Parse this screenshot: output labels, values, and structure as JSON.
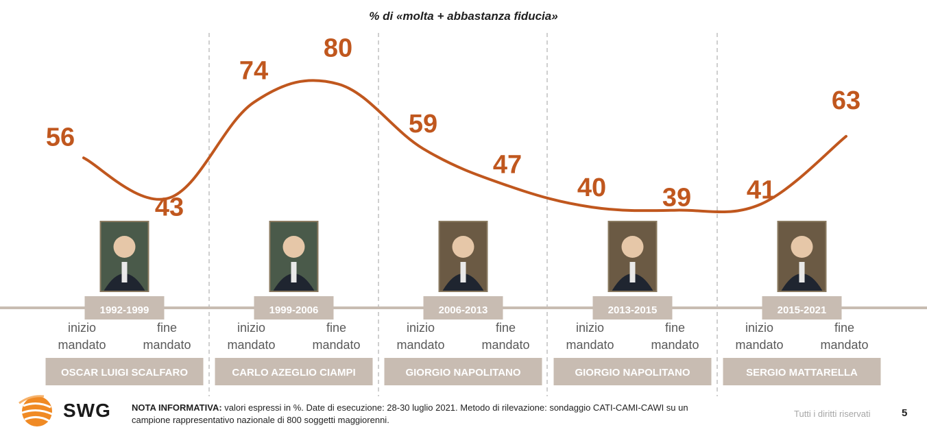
{
  "chart_data": {
    "type": "line",
    "title": "% di «molta + abbastanza fiducia»",
    "x": [
      "Scalfaro inizio",
      "Scalfaro fine",
      "Ciampi inizio",
      "Ciampi fine",
      "Napolitano I inizio",
      "Napolitano I fine",
      "Napolitano II inizio",
      "Napolitano II fine",
      "Mattarella inizio",
      "Mattarella fine"
    ],
    "series": [
      {
        "values": [
          56,
          43,
          74,
          80,
          59,
          47,
          40,
          39,
          41,
          63
        ]
      }
    ],
    "value_labels": [
      "56",
      "43",
      "74",
      "80",
      "59",
      "47",
      "40",
      "39",
      "41",
      "63"
    ],
    "line_color": "#C0571E",
    "label_color": "#C0571E",
    "mandates": [
      {
        "period": "1992-1999",
        "president": "OSCAR LUIGI SCALFARO",
        "start_label": [
          "inizio",
          "mandato"
        ],
        "end_label": [
          "fine",
          "mandato"
        ],
        "portrait": "portrait-scalfaro"
      },
      {
        "period": "1999-2006",
        "president": "CARLO AZEGLIO CIAMPI",
        "start_label": [
          "inizio",
          "mandato"
        ],
        "end_label": [
          "fine",
          "mandato"
        ],
        "portrait": "portrait-ciampi"
      },
      {
        "period": "2006-2013",
        "president": "GIORGIO NAPOLITANO",
        "start_label": [
          "inizio",
          "mandato"
        ],
        "end_label": [
          "fine",
          "mandato"
        ],
        "portrait": "portrait-napolitano"
      },
      {
        "period": "2013-2015",
        "president": "GIORGIO NAPOLITANO",
        "start_label": [
          "inizio",
          "mandato"
        ],
        "end_label": [
          "fine",
          "mandato"
        ],
        "portrait": "portrait-napolitano"
      },
      {
        "period": "2015-2021",
        "president": "SERGIO MATTARELLA",
        "start_label": [
          "inizio",
          "mandato"
        ],
        "end_label": [
          "fine",
          "mandato"
        ],
        "portrait": "portrait-mattarella"
      }
    ],
    "label_box_color": "#C8BCB2",
    "timeline_color": "#C8BCB2",
    "divider_color": "#BFBFBF"
  },
  "footer": {
    "note_bold": "NOTA INFORMATIVA:",
    "note_text": " valori espressi in %. Date di esecuzione: 28-30 luglio 2021. Metodo di rilevazione: sondaggio CATI-CAMI-CAWI su un campione rappresentativo nazionale di 800 soggetti maggiorenni.",
    "rights": "Tutti i diritti riservati",
    "page_number": "5",
    "logo_text": "SWG",
    "logo_icon": "swg-globe-icon",
    "logo_color": "#F08A24"
  }
}
